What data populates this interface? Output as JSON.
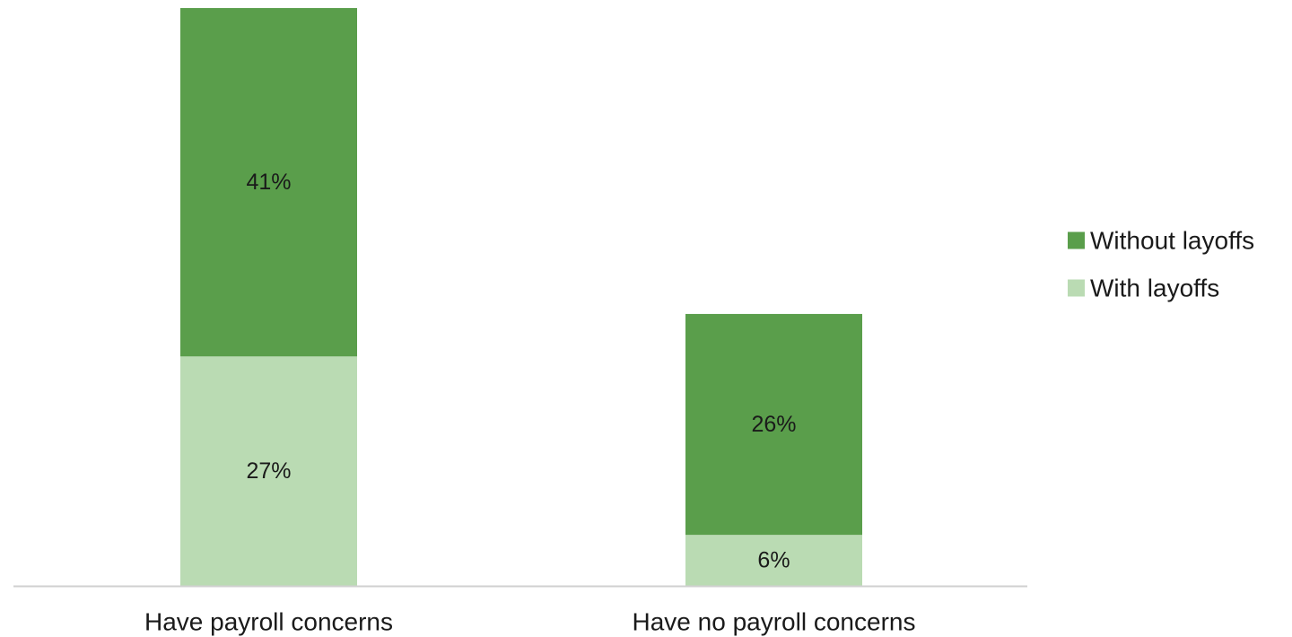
{
  "chart_data": {
    "type": "bar",
    "stacked": true,
    "title": "",
    "xlabel": "",
    "ylabel": "",
    "ylim": [
      0,
      68
    ],
    "grid": false,
    "legend_position": "right",
    "categories": [
      "Have payroll concerns",
      "Have no payroll concerns"
    ],
    "series": [
      {
        "name": "With layoffs",
        "values": [
          27,
          6
        ],
        "labels": [
          "27%",
          "6%"
        ],
        "color": "#badbb3"
      },
      {
        "name": "Without layoffs",
        "values": [
          41,
          26
        ],
        "labels": [
          "41%",
          "26%"
        ],
        "color": "#5a9e4b"
      }
    ],
    "legend_order": [
      "Without layoffs",
      "With layoffs"
    ],
    "axis_color": "#d0d0d0"
  }
}
